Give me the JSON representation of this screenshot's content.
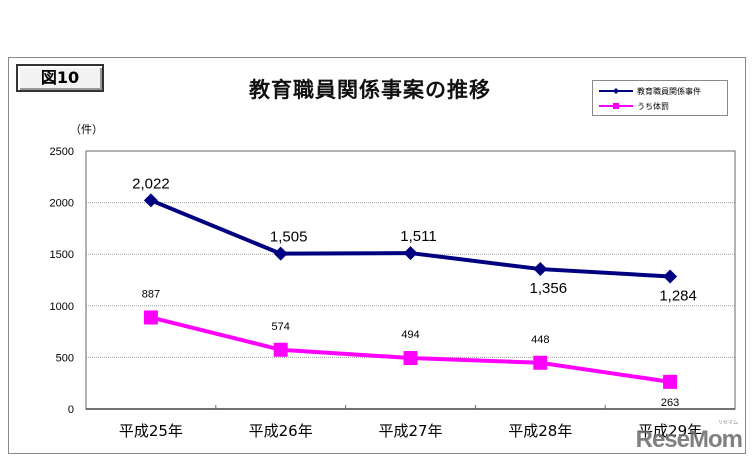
{
  "figure_label": "図10",
  "chart_data": {
    "type": "line",
    "title": "教育職員関係事案の推移",
    "xlabel": "",
    "ylabel": "（件）",
    "ylim": [
      0,
      2500
    ],
    "yticks": [
      0,
      500,
      1000,
      1500,
      2000,
      2500
    ],
    "grid": true,
    "legend_position": "top-right",
    "categories": [
      "平成25年",
      "平成26年",
      "平成27年",
      "平成28年",
      "平成29年"
    ],
    "series": [
      {
        "name": "教育職員関係事件",
        "color": "#000080",
        "marker": "diamond",
        "values": [
          2022,
          1505,
          1511,
          1356,
          1284
        ],
        "labels": [
          "2,022",
          "1,505",
          "1,511",
          "1,356",
          "1,284"
        ]
      },
      {
        "name": "うち体罰",
        "color": "#ff00ff",
        "marker": "square",
        "values": [
          887,
          574,
          494,
          448,
          263
        ],
        "labels": [
          "887",
          "574",
          "494",
          "448",
          "263"
        ]
      }
    ]
  },
  "watermark": {
    "text": "ReseMom",
    "sub": "リセマム"
  }
}
